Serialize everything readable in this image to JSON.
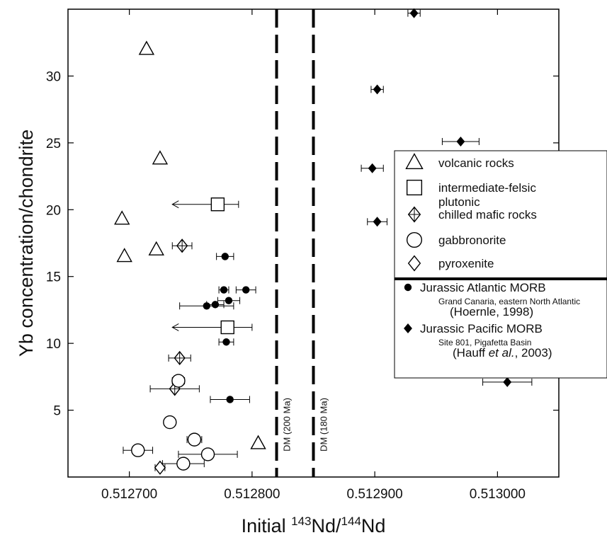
{
  "chart_data": {
    "type": "scatter",
    "xlabel": {
      "main": "Initial ",
      "iso1": "143",
      "mid": "Nd/",
      "iso2": "144",
      "end": "Nd"
    },
    "ylabel": "Yb concentration/chondrite",
    "xlim": [
      0.51265,
      0.51305
    ],
    "ylim": [
      0,
      35
    ],
    "x_ticks": [
      {
        "value": 0.5127,
        "label": "0.512700"
      },
      {
        "value": 0.5128,
        "label": "0.512800"
      },
      {
        "value": 0.5129,
        "label": "0.512900"
      },
      {
        "value": 0.513,
        "label": "0.513000"
      }
    ],
    "y_ticks": [
      {
        "value": 5,
        "label": "5"
      },
      {
        "value": 10,
        "label": "10"
      },
      {
        "value": 15,
        "label": "15"
      },
      {
        "value": 20,
        "label": "20"
      },
      {
        "value": 25,
        "label": "25"
      },
      {
        "value": 30,
        "label": "30"
      }
    ],
    "reference_lines": [
      {
        "x": 0.51282,
        "label": "DM (200 Ma)"
      },
      {
        "x": 0.51285,
        "label": "DM (180 Ma)"
      }
    ],
    "legend": {
      "position": "right",
      "items": [
        {
          "symbol": "triangle",
          "lines": [
            "volcanic rocks"
          ]
        },
        {
          "symbol": "square",
          "lines": [
            "intermediate-felsic",
            "plutonic"
          ]
        },
        {
          "symbol": "diamond-cross",
          "lines": [
            "chilled mafic rocks"
          ]
        },
        {
          "symbol": "circle",
          "lines": [
            "gabbronorite"
          ]
        },
        {
          "symbol": "diamond",
          "lines": [
            "pyroxenite"
          ]
        }
      ],
      "reference_items": [
        {
          "symbol": "dot",
          "title": "Jurassic Atlantic MORB",
          "subtitle": "Grand Canaria, eastern North Atlantic",
          "citation": "(Hoernle, 1998)"
        },
        {
          "symbol": "filled-diamond",
          "title": "Jurassic Pacific MORB",
          "subtitle": "Site 801, Pigafetta Basin",
          "citation_pre": "(Hauff ",
          "citation_em": "et al.",
          "citation_post": ", 2003)"
        }
      ]
    },
    "series": [
      {
        "name": "volcanic rocks",
        "marker": "triangle",
        "points": [
          {
            "x": 0.512714,
            "y": 32.0
          },
          {
            "x": 0.512725,
            "y": 23.8
          },
          {
            "x": 0.512694,
            "y": 19.3
          },
          {
            "x": 0.512722,
            "y": 17.0
          },
          {
            "x": 0.512696,
            "y": 16.5
          },
          {
            "x": 0.512805,
            "y": 2.5
          }
        ]
      },
      {
        "name": "intermediate-felsic plutonic",
        "marker": "square",
        "points": [
          {
            "x": 0.512772,
            "y": 20.4,
            "xerr_minus": 3.7e-05,
            "xerr_plus": 1.7e-05,
            "arrow_left": true
          },
          {
            "x": 0.51278,
            "y": 11.2,
            "xerr_minus": 4.5e-05,
            "xerr_plus": 2e-05,
            "arrow_left": true
          }
        ]
      },
      {
        "name": "chilled mafic rocks",
        "marker": "diamond-cross",
        "points": [
          {
            "x": 0.512743,
            "y": 17.3,
            "xerr": 8e-06
          },
          {
            "x": 0.512741,
            "y": 8.9,
            "xerr": 9e-06
          },
          {
            "x": 0.512737,
            "y": 6.6,
            "xerr": 2e-05
          }
        ]
      },
      {
        "name": "gabbronorite",
        "marker": "circle",
        "points": [
          {
            "x": 0.51274,
            "y": 7.2,
            "xerr": 5e-06
          },
          {
            "x": 0.512733,
            "y": 4.1,
            "xerr": 4e-06
          },
          {
            "x": 0.512753,
            "y": 2.8,
            "xerr": 6e-06
          },
          {
            "x": 0.512707,
            "y": 2.0,
            "xerr": 1.2e-05
          },
          {
            "x": 0.512764,
            "y": 1.7,
            "xerr": 2.4e-05
          },
          {
            "x": 0.512744,
            "y": 1.0,
            "xerr": 1.7e-05
          }
        ]
      },
      {
        "name": "pyroxenite",
        "marker": "diamond",
        "points": [
          {
            "x": 0.512725,
            "y": 0.7,
            "xerr": 4e-06
          }
        ]
      },
      {
        "name": "Jurassic Atlantic MORB",
        "marker": "dot",
        "points": [
          {
            "x": 0.512778,
            "y": 16.5,
            "xerr": 7e-06
          },
          {
            "x": 0.512777,
            "y": 14.0,
            "xerr": 4e-06
          },
          {
            "x": 0.512795,
            "y": 14.0,
            "xerr": 8e-06
          },
          {
            "x": 0.512781,
            "y": 13.2,
            "xerr": 9e-06
          },
          {
            "x": 0.51277,
            "y": 12.9,
            "xerr": 7e-06
          },
          {
            "x": 0.512763,
            "y": 12.8,
            "xerr": 2.2e-05
          },
          {
            "x": 0.512779,
            "y": 10.1,
            "xerr": 6e-06
          },
          {
            "x": 0.512782,
            "y": 5.8,
            "xerr": 1.6e-05
          }
        ]
      },
      {
        "name": "Jurassic Pacific MORB",
        "marker": "filled-diamond",
        "points": [
          {
            "x": 0.512932,
            "y": 34.7,
            "xerr": 5e-06
          },
          {
            "x": 0.512902,
            "y": 29.0,
            "xerr": 5e-06
          },
          {
            "x": 0.51297,
            "y": 25.1,
            "xerr": 1.5e-05
          },
          {
            "x": 0.512898,
            "y": 23.1,
            "xerr": 9e-06
          },
          {
            "x": 0.512902,
            "y": 19.1,
            "xerr": 8e-06
          },
          {
            "x": 0.513008,
            "y": 7.1,
            "xerr": 2e-05
          }
        ]
      }
    ]
  }
}
